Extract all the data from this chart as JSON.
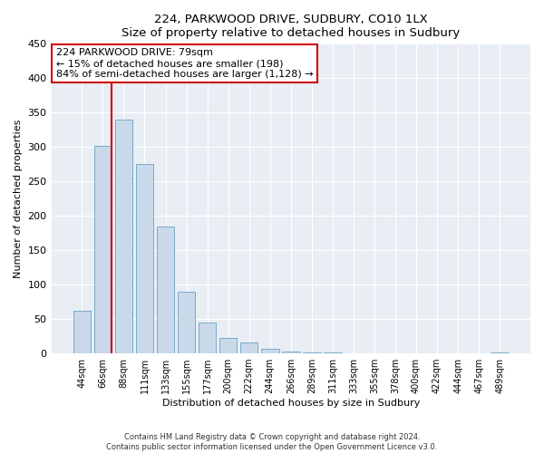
{
  "title": "224, PARKWOOD DRIVE, SUDBURY, CO10 1LX",
  "subtitle": "Size of property relative to detached houses in Sudbury",
  "xlabel": "Distribution of detached houses by size in Sudbury",
  "ylabel": "Number of detached properties",
  "bar_labels": [
    "44sqm",
    "66sqm",
    "88sqm",
    "111sqm",
    "133sqm",
    "155sqm",
    "177sqm",
    "200sqm",
    "222sqm",
    "244sqm",
    "266sqm",
    "289sqm",
    "311sqm",
    "333sqm",
    "355sqm",
    "378sqm",
    "400sqm",
    "422sqm",
    "444sqm",
    "467sqm",
    "489sqm"
  ],
  "bar_heights": [
    62,
    302,
    340,
    275,
    185,
    90,
    45,
    23,
    16,
    7,
    3,
    2,
    1,
    0,
    0,
    0,
    0,
    0,
    0,
    0,
    2
  ],
  "bar_color": "#c9d9ea",
  "bar_edge_color": "#7aaac8",
  "annotation_title": "224 PARKWOOD DRIVE: 79sqm",
  "annotation_line1": "← 15% of detached houses are smaller (198)",
  "annotation_line2": "84% of semi-detached houses are larger (1,128) →",
  "annotation_box_color": "#ffffff",
  "annotation_box_edgecolor": "#cc0000",
  "redline_color": "#cc0000",
  "ylim": [
    0,
    450
  ],
  "yticks": [
    0,
    50,
    100,
    150,
    200,
    250,
    300,
    350,
    400,
    450
  ],
  "bg_color": "#e8eef4",
  "grid_color": "#ffffff",
  "footer1": "Contains HM Land Registry data © Crown copyright and database right 2024.",
  "footer2": "Contains public sector information licensed under the Open Government Licence v3.0."
}
